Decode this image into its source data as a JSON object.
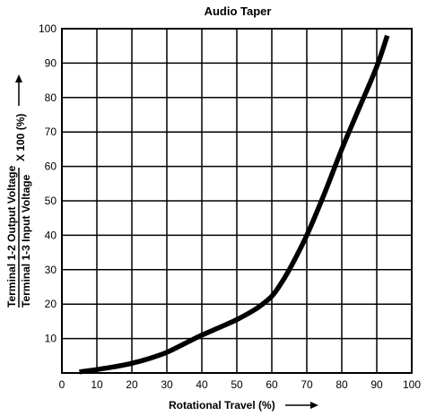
{
  "chart_data": {
    "type": "line",
    "title": "Audio Taper",
    "xlabel": "Rotational Travel (%)",
    "ylabel_numerator": "Terminal 1-2 Output Voltage",
    "ylabel_denominator": "Terminal 1-3 Input Voltage",
    "ylabel_suffix": "X 100 (%)",
    "xlim": [
      0,
      100
    ],
    "ylim": [
      0,
      100
    ],
    "grid": true,
    "x_ticks": [
      0,
      10,
      20,
      30,
      40,
      50,
      60,
      70,
      80,
      90,
      100
    ],
    "y_ticks": [
      10,
      20,
      30,
      40,
      50,
      60,
      70,
      80,
      90,
      100
    ],
    "series": [
      {
        "x": [
          5,
          10,
          15,
          20,
          25,
          30,
          35,
          40,
          45,
          50,
          55,
          58,
          60,
          62,
          65,
          70,
          75,
          80,
          85,
          90,
          93
        ],
        "y": [
          0.3,
          1,
          1.8,
          2.8,
          4.2,
          6,
          8.5,
          11,
          13.2,
          15.5,
          18.3,
          20.5,
          22.3,
          25,
          30,
          40,
          52,
          65,
          77,
          89,
          98
        ]
      }
    ],
    "color": "#000000"
  }
}
